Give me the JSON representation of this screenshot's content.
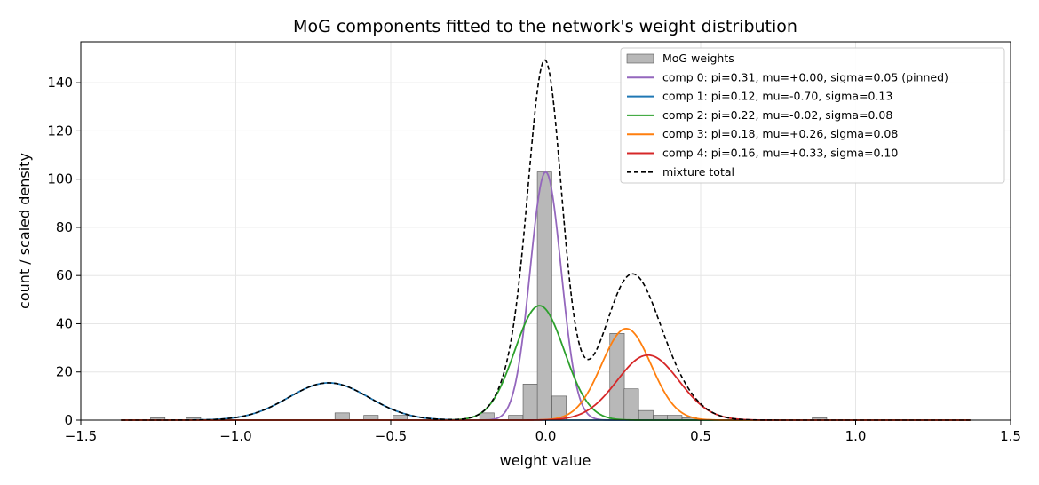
{
  "chart_data": {
    "type": "bar+line",
    "title": "MoG components fitted to the network's weight distribution",
    "xlabel": "weight value",
    "ylabel": "count / scaled density",
    "xlim": [
      -1.5,
      1.5
    ],
    "ylim": [
      0,
      157
    ],
    "xticks": [
      -1.5,
      -1.0,
      -0.5,
      0.0,
      0.5,
      1.0,
      1.5
    ],
    "xtick_labels": [
      "−1.5",
      "−1.0",
      "−0.5",
      "0.0",
      "0.5",
      "1.0",
      "1.5"
    ],
    "yticks": [
      0,
      20,
      40,
      60,
      80,
      100,
      120,
      140
    ],
    "ytick_labels": [
      "0",
      "20",
      "40",
      "60",
      "80",
      "100",
      "120",
      "140"
    ],
    "grid": true,
    "legend_position": "upper-right",
    "x_range_curves": [
      -1.37,
      1.37
    ],
    "histogram": {
      "name": "MoG weights",
      "color": "#b8b8b8",
      "edgecolor": "#555555",
      "bin_width": 0.0467,
      "bins": [
        {
          "x_left": -1.275,
          "count": 1
        },
        {
          "x_left": -1.16,
          "count": 1
        },
        {
          "x_left": -0.68,
          "count": 3
        },
        {
          "x_left": -0.587,
          "count": 2
        },
        {
          "x_left": -0.493,
          "count": 2
        },
        {
          "x_left": -0.213,
          "count": 3
        },
        {
          "x_left": -0.12,
          "count": 2
        },
        {
          "x_left": -0.073,
          "count": 15
        },
        {
          "x_left": -0.027,
          "count": 103
        },
        {
          "x_left": 0.02,
          "count": 10
        },
        {
          "x_left": 0.207,
          "count": 36
        },
        {
          "x_left": 0.253,
          "count": 13
        },
        {
          "x_left": 0.3,
          "count": 4
        },
        {
          "x_left": 0.347,
          "count": 2
        },
        {
          "x_left": 0.393,
          "count": 2
        },
        {
          "x_left": 0.44,
          "count": 1
        },
        {
          "x_left": 0.86,
          "count": 1
        }
      ]
    },
    "series": [
      {
        "name": "comp 0: pi=0.31, mu=+0.00, sigma=0.05  (pinned)",
        "color": "#9467bd",
        "pi": 0.31,
        "mu": 0.0,
        "sigma": 0.05,
        "peak": 103
      },
      {
        "name": "comp 1: pi=0.12, mu=-0.70, sigma=0.13",
        "color": "#1f77b4",
        "pi": 0.12,
        "mu": -0.7,
        "sigma": 0.13,
        "peak": 15.5
      },
      {
        "name": "comp 2: pi=0.22, mu=-0.02, sigma=0.08",
        "color": "#2ca02c",
        "pi": 0.22,
        "mu": -0.02,
        "sigma": 0.08,
        "peak": 47.5
      },
      {
        "name": "comp 3: pi=0.18, mu=+0.26, sigma=0.08",
        "color": "#ff7f0e",
        "pi": 0.18,
        "mu": 0.26,
        "sigma": 0.08,
        "peak": 38
      },
      {
        "name": "comp 4: pi=0.16, mu=+0.33, sigma=0.10",
        "color": "#d62728",
        "pi": 0.16,
        "mu": 0.33,
        "sigma": 0.1,
        "peak": 27
      }
    ],
    "total": {
      "name": "mixture total",
      "color": "#000000",
      "style": "dashed"
    }
  }
}
